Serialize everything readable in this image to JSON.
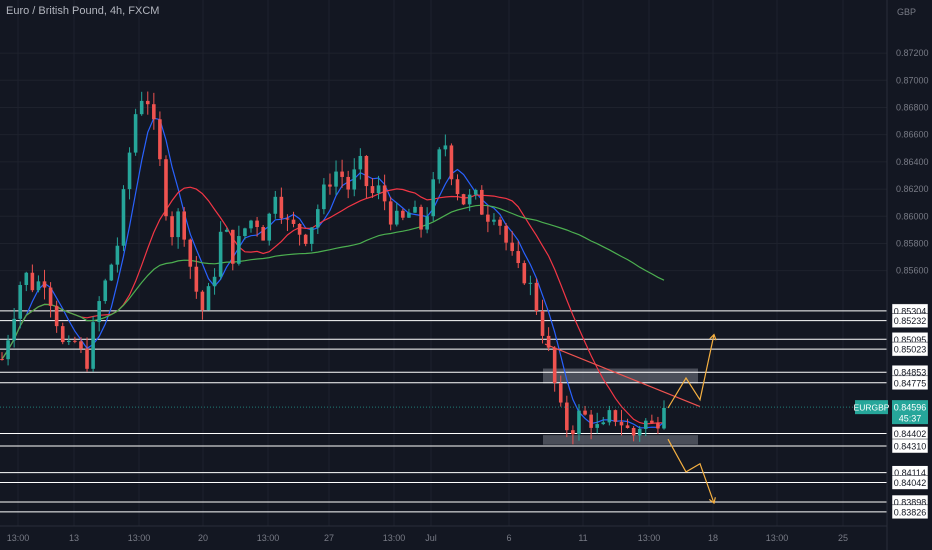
{
  "header": {
    "symbol_title": "Euro / British Pound, 4h, FXCM",
    "currency": "GBP"
  },
  "colors": {
    "background": "#131722",
    "bull": "#26a69a",
    "bear": "#ef5350",
    "ma_fast": "#2962ff",
    "ma_mid": "#f23645",
    "ma_slow": "#4caf50",
    "level_line": "#ffffff",
    "arrow": "#f5b041"
  },
  "chart_data": {
    "type": "candlestick",
    "symbol": "EURGBP",
    "ylim": [
      0.8381,
      0.8737
    ],
    "y_tick_labels": [
      "0.87200",
      "0.87000",
      "0.86800",
      "0.86600",
      "0.86400",
      "0.86200",
      "0.86000",
      "0.85800",
      "0.85600"
    ],
    "x_tick_labels": [
      "13:00",
      "13",
      "13:00",
      "20",
      "13:00",
      "27",
      "13:00",
      "Jul",
      "6",
      "11",
      "13:00",
      "18",
      "13:00",
      "25"
    ],
    "horizontal_levels": [
      "0.85304",
      "0.85232",
      "0.85095",
      "0.85023",
      "0.84853",
      "0.84775",
      "0.84402",
      "0.84310",
      "0.84114",
      "0.84042",
      "0.83898",
      "0.83826"
    ],
    "current_price": {
      "label": "EURGBP",
      "price": "0.84596",
      "countdown": "45:37"
    },
    "zones": [
      {
        "from": 0.8477,
        "to": 0.8488
      },
      {
        "from": 0.8432,
        "to": 0.8439
      }
    ],
    "projection_up": [
      [
        0.8459,
        0.8481,
        0.8465,
        0.8513
      ]
    ],
    "projection_down": [
      [
        0.8436,
        0.8412,
        0.8418,
        0.8389
      ]
    ],
    "price_path": [
      0.8495,
      0.8525,
      0.856,
      0.8548,
      0.8555,
      0.853,
      0.8498,
      0.8508,
      0.849,
      0.853,
      0.8555,
      0.858,
      0.864,
      0.869,
      0.8685,
      0.864,
      0.8585,
      0.8605,
      0.856,
      0.853,
      0.855,
      0.8595,
      0.857,
      0.859,
      0.86,
      0.8585,
      0.862,
      0.8595,
      0.859,
      0.8585,
      0.8605,
      0.8625,
      0.8635,
      0.862,
      0.864,
      0.8615,
      0.862,
      0.86,
      0.8595,
      0.8605,
      0.859,
      0.862,
      0.866,
      0.8625,
      0.861,
      0.8615,
      0.86,
      0.8605,
      0.858,
      0.856,
      0.8555,
      0.853,
      0.85,
      0.846,
      0.844,
      0.8455,
      0.845,
      0.844,
      0.8455,
      0.8448,
      0.8438,
      0.845,
      0.8445,
      0.8459
    ]
  }
}
